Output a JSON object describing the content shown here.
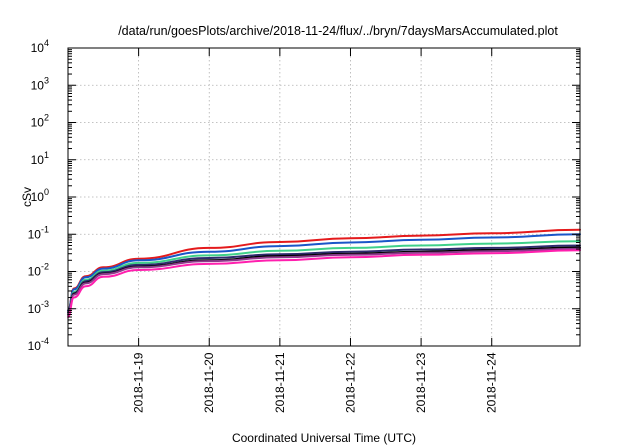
{
  "chart_data": {
    "type": "line",
    "title": "/data/run/goesPlots/archive/2018-11-24/flux/../bryn/7daysMarsAccumulated.plot",
    "xlabel": "Coordinated Universal Time (UTC)",
    "ylabel": "cSv",
    "yscale": "log",
    "ylim": [
      0.0001,
      10000
    ],
    "xlim": [
      "2018-11-18 00:00",
      "2018-11-25 06:00"
    ],
    "grid": true,
    "x_ticks": [
      "2018-11-19",
      "2018-11-20",
      "2018-11-21",
      "2018-11-22",
      "2018-11-23",
      "2018-11-24"
    ],
    "y_ticks": [
      {
        "base": "10",
        "exp": "-4"
      },
      {
        "base": "10",
        "exp": "-3"
      },
      {
        "base": "10",
        "exp": "-2"
      },
      {
        "base": "10",
        "exp": "-1"
      },
      {
        "base": "10",
        "exp": "0"
      },
      {
        "base": "10",
        "exp": "1"
      },
      {
        "base": "10",
        "exp": "2"
      },
      {
        "base": "10",
        "exp": "3"
      },
      {
        "base": "10",
        "exp": "4"
      }
    ],
    "x": [
      "2018-11-18 00:00",
      "2018-11-18 02:00",
      "2018-11-18 06:00",
      "2018-11-18 12:00",
      "2018-11-19 00:00",
      "2018-11-20 00:00",
      "2018-11-21 00:00",
      "2018-11-22 00:00",
      "2018-11-23 00:00",
      "2018-11-24 00:00",
      "2018-11-25 06:00"
    ],
    "series": [
      {
        "color": "#e41a1c",
        "values": [
          0.0009,
          0.0035,
          0.0075,
          0.013,
          0.022,
          0.043,
          0.062,
          0.078,
          0.092,
          0.107,
          0.132
        ]
      },
      {
        "color": "#1a56c8",
        "values": [
          0.0009,
          0.0033,
          0.007,
          0.012,
          0.02,
          0.034,
          0.048,
          0.06,
          0.071,
          0.082,
          0.1
        ]
      },
      {
        "color": "#3fd08a",
        "values": [
          0.0008,
          0.0028,
          0.006,
          0.0105,
          0.017,
          0.027,
          0.036,
          0.043,
          0.05,
          0.056,
          0.065
        ]
      },
      {
        "color": "#2e2b6e",
        "values": [
          0.0008,
          0.0026,
          0.0055,
          0.0095,
          0.015,
          0.023,
          0.029,
          0.034,
          0.039,
          0.043,
          0.05
        ]
      },
      {
        "color": "#000000",
        "values": [
          0.0007,
          0.0025,
          0.005,
          0.0088,
          0.0135,
          0.02,
          0.026,
          0.03,
          0.034,
          0.038,
          0.044
        ]
      },
      {
        "color": "#8b3a8b",
        "values": [
          0.0007,
          0.0024,
          0.0048,
          0.0085,
          0.013,
          0.019,
          0.024,
          0.028,
          0.032,
          0.035,
          0.041
        ]
      },
      {
        "color": "#ff1fae",
        "values": [
          0.0006,
          0.002,
          0.004,
          0.0072,
          0.011,
          0.016,
          0.02,
          0.024,
          0.028,
          0.031,
          0.037
        ]
      }
    ]
  }
}
